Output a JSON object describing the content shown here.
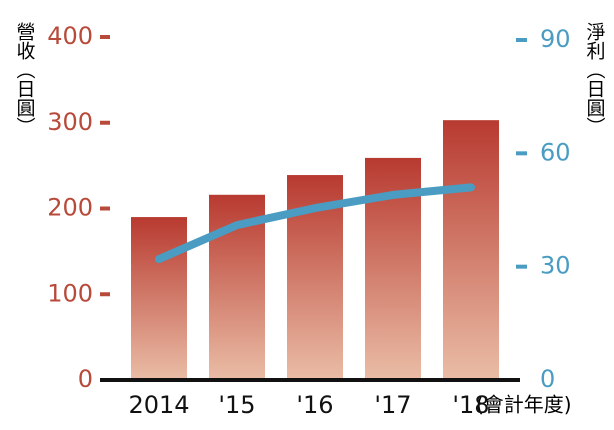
{
  "chart_data": {
    "type": "bar_line",
    "categories": [
      "2014",
      "'15",
      "'16",
      "'17",
      "'18"
    ],
    "x_label": "(會計年度)",
    "y_label": "營收（日圓）",
    "y2_label": "淨利（日圓）",
    "series": [
      {
        "type": "bar",
        "color": "#b83a30",
        "color2": "#eabda6",
        "values": [
          190,
          216,
          239,
          259,
          303
        ]
      },
      {
        "type": "line",
        "axis": "y2",
        "color": "#4a9cc2",
        "values": [
          32,
          41,
          45.5,
          49,
          51
        ]
      }
    ],
    "ylim": [
      0,
      400
    ],
    "yticks": [
      0,
      100,
      200,
      300,
      400
    ],
    "y_color": "#b84a3a",
    "y2lim": [
      0,
      90
    ],
    "y2ticks": [
      0,
      30,
      60,
      90
    ],
    "y2_color": "#4a9cc2"
  }
}
